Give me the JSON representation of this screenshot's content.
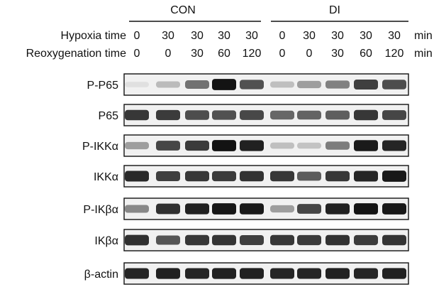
{
  "groups": [
    {
      "label": "CON",
      "lanes": [
        0,
        1,
        2,
        3,
        4
      ]
    },
    {
      "label": "DI",
      "lanes": [
        5,
        6,
        7,
        8,
        9
      ]
    }
  ],
  "conditions": {
    "hypoxia": {
      "label": "Hypoxia time",
      "values": [
        "0",
        "30",
        "30",
        "30",
        "30",
        "0",
        "30",
        "30",
        "30",
        "30"
      ],
      "unit": "min"
    },
    "reoxygen": {
      "label": "Reoxygenation time",
      "values": [
        "0",
        "0",
        "30",
        "60",
        "120",
        "0",
        "0",
        "30",
        "60",
        "120"
      ],
      "unit": "min"
    }
  },
  "blots": [
    {
      "label": "P-P65",
      "intensity": [
        0.05,
        0.22,
        0.55,
        0.98,
        0.7,
        0.2,
        0.35,
        0.48,
        0.78,
        0.72
      ]
    },
    {
      "label": "P65",
      "intensity": [
        0.82,
        0.8,
        0.72,
        0.7,
        0.74,
        0.6,
        0.62,
        0.64,
        0.82,
        0.75
      ]
    },
    {
      "label": "P-IKKα",
      "intensity": [
        0.35,
        0.75,
        0.8,
        0.98,
        0.92,
        0.2,
        0.18,
        0.5,
        0.95,
        0.9
      ]
    },
    {
      "label": "IKKα",
      "intensity": [
        0.88,
        0.78,
        0.82,
        0.8,
        0.84,
        0.82,
        0.65,
        0.82,
        0.9,
        0.96
      ]
    },
    {
      "label": "P-IKβα",
      "intensity": [
        0.45,
        0.85,
        0.92,
        0.97,
        0.95,
        0.35,
        0.75,
        0.92,
        0.98,
        0.96
      ]
    },
    {
      "label": "IKβα",
      "intensity": [
        0.85,
        0.68,
        0.82,
        0.83,
        0.78,
        0.82,
        0.8,
        0.84,
        0.8,
        0.83
      ]
    },
    {
      "label": "β-actin",
      "intensity": [
        0.9,
        0.92,
        0.9,
        0.92,
        0.92,
        0.9,
        0.9,
        0.92,
        0.9,
        0.92
      ]
    }
  ]
}
